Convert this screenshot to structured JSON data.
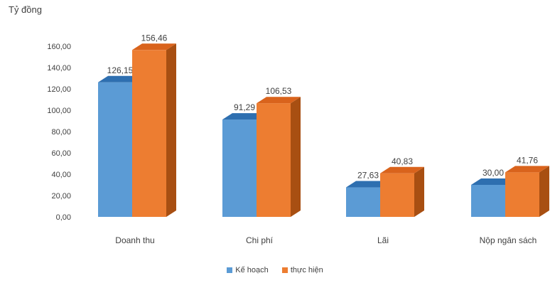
{
  "chart_data": {
    "type": "bar",
    "ylabel": "Tỷ đồng",
    "categories": [
      "Doanh thu",
      "Chi phí",
      "Lãi",
      "Nộp ngân sách"
    ],
    "series": [
      {
        "name": "Kế hoạch",
        "values": [
          126.15,
          91.29,
          27.63,
          30.0
        ],
        "labels": [
          "126,15",
          "91,29",
          "27,63",
          "30,00"
        ],
        "color": "#5b9bd5",
        "top_color": "#2e6fb0",
        "side_color": "#3a75b0"
      },
      {
        "name": "thực hiện",
        "values": [
          156.46,
          106.53,
          40.83,
          41.76
        ],
        "labels": [
          "156,46",
          "106,53",
          "40,83",
          "41,76"
        ],
        "color": "#ed7d31",
        "top_color": "#d9631c",
        "side_color": "#a84f12"
      }
    ],
    "yticks": [
      0,
      20,
      40,
      60,
      80,
      100,
      120,
      140,
      160
    ],
    "ytick_labels": [
      "0,00",
      "20,00",
      "40,00",
      "60,00",
      "80,00",
      "100,00",
      "120,00",
      "140,00",
      "160,00"
    ],
    "ylim": [
      0,
      160
    ],
    "grid": false,
    "legend": "bottom"
  }
}
